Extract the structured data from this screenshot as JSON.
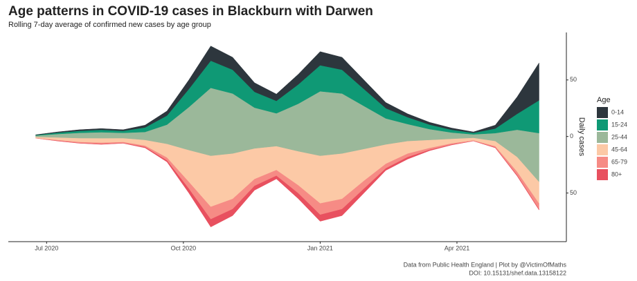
{
  "chart_data": {
    "type": "streamgraph",
    "title": "Age patterns in COVID-19 cases in Blackburn with Darwen",
    "subtitle": "Rolling 7-day average of confirmed new cases by age group",
    "y_label": "Daily cases",
    "legend_title": "Age",
    "caption": [
      "Data from Public Health England | Plot by @VictimOfMaths",
      "DOI: 10.15131/shef.data.13158122"
    ],
    "x": [
      2020.48,
      2020.52,
      2020.56,
      2020.6,
      2020.64,
      2020.68,
      2020.72,
      2020.76,
      2020.8,
      2020.84,
      2020.88,
      2020.92,
      2020.96,
      2021.0,
      2021.04,
      2021.08,
      2021.12,
      2021.16,
      2021.2,
      2021.24,
      2021.28,
      2021.32,
      2021.36,
      2021.4
    ],
    "xlim": [
      2020.43,
      2021.45
    ],
    "xticks": [
      {
        "value": 2020.5,
        "label": "Jul 2020"
      },
      {
        "value": 2020.75,
        "label": "Oct 2020"
      },
      {
        "value": 2021.0,
        "label": "Jan 2021"
      },
      {
        "value": 2021.25,
        "label": "Apr 2021"
      }
    ],
    "ylim": [
      -93,
      92
    ],
    "yticks": [
      50,
      0,
      {
        "value": -50,
        "label": "50"
      }
    ],
    "series": [
      {
        "name": "0-14",
        "color": "#2d363d",
        "values": [
          0.2,
          0.6,
          1,
          1.1,
          1,
          2,
          4,
          8,
          13,
          11,
          8,
          6,
          9,
          12,
          11,
          8,
          5,
          3,
          2,
          1.5,
          0.8,
          3,
          15,
          33
        ]
      },
      {
        "name": "15-24",
        "color": "#0f9975",
        "values": [
          0.5,
          1.2,
          1.8,
          2.1,
          1.8,
          4,
          8,
          16,
          24,
          21,
          14,
          11,
          17,
          23,
          21,
          15,
          9,
          6,
          4,
          2.5,
          1.3,
          4,
          14,
          29
        ]
      },
      {
        "name": "25-44",
        "color": "#9bb89a",
        "values": [
          1.2,
          3,
          4.6,
          5.3,
          4.6,
          7,
          17,
          38,
          60,
          53,
          36,
          29,
          42,
          57,
          53,
          38,
          23,
          15,
          9.5,
          5.5,
          3,
          7,
          24,
          43
        ]
      },
      {
        "name": "45-64",
        "color": "#fcc9a6",
        "values": [
          0.8,
          2.2,
          3.4,
          3.9,
          3.4,
          5,
          12,
          28,
          45,
          40,
          27,
          21,
          30,
          42,
          40,
          28,
          17,
          11,
          7,
          4,
          2.2,
          4.5,
          13,
          19
        ]
      },
      {
        "name": "65-79",
        "color": "#f68b85",
        "values": [
          0.2,
          0.6,
          0.8,
          1,
          0.8,
          1.2,
          2.5,
          6,
          11,
          9,
          6,
          5,
          7,
          10,
          9,
          7,
          4,
          3,
          1.6,
          1,
          0.5,
          1,
          3,
          5
        ]
      },
      {
        "name": "80+",
        "color": "#e8505f",
        "values": [
          0.1,
          0.4,
          0.4,
          0.6,
          0.4,
          0.8,
          1.5,
          4,
          7,
          6,
          4,
          3,
          5,
          6,
          6,
          4,
          2,
          2,
          0.9,
          0.5,
          0.2,
          0.5,
          1,
          1
        ]
      }
    ]
  }
}
